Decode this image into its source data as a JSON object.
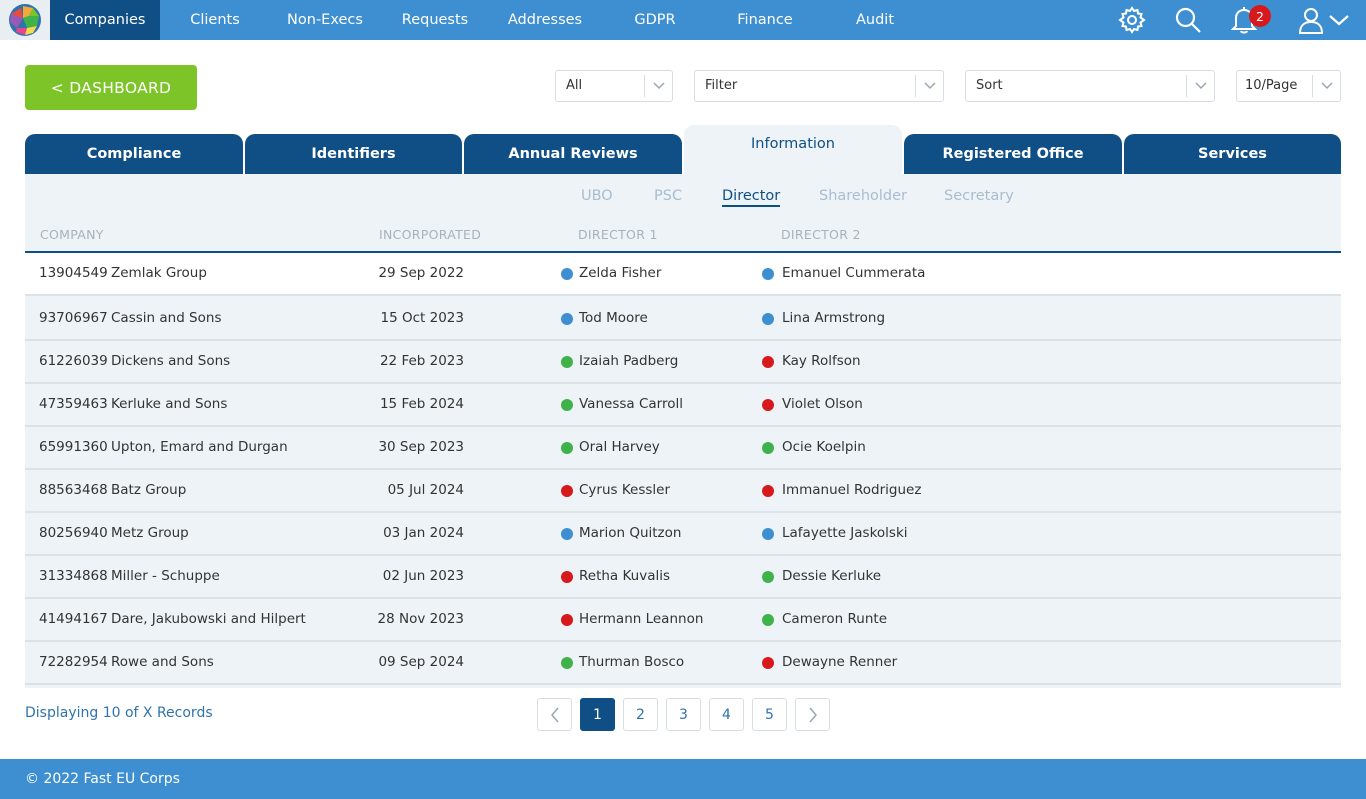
{
  "nav": {
    "items": [
      {
        "label": "Companies",
        "active": true
      },
      {
        "label": "Clients"
      },
      {
        "label": "Non-Execs"
      },
      {
        "label": "Requests"
      },
      {
        "label": "Addresses"
      },
      {
        "label": "GDPR"
      },
      {
        "label": "Finance"
      },
      {
        "label": "Audit"
      }
    ],
    "notification_count": "2",
    "icons": [
      "gear-icon",
      "search-icon",
      "bell-icon",
      "user-icon",
      "chevron-down-icon"
    ]
  },
  "controls": {
    "dashboard_label": "< DASHBOARD",
    "filter_all": "All",
    "filter": "Filter",
    "sort": "Sort",
    "per_page": "10/Page"
  },
  "tabs": [
    {
      "label": "Compliance"
    },
    {
      "label": "Identifiers"
    },
    {
      "label": "Annual Reviews"
    },
    {
      "label": "Information",
      "active": true
    },
    {
      "label": "Registered Office"
    },
    {
      "label": "Services"
    }
  ],
  "subtabs": [
    {
      "label": "UBO"
    },
    {
      "label": "PSC"
    },
    {
      "label": "Director",
      "active": true
    },
    {
      "label": "Shareholder"
    },
    {
      "label": "Secretary"
    }
  ],
  "table": {
    "headers": {
      "company": "COMPANY",
      "incorporated": "INCORPORATED",
      "director1": "DIRECTOR 1",
      "director2": "DIRECTOR 2"
    },
    "rows": [
      {
        "number": "13904549",
        "name": "Zemlak Group",
        "date": "29 Sep 2022",
        "d1": "Zelda Fisher",
        "d1_status": "blue",
        "d2": "Emanuel Cummerata",
        "d2_status": "blue"
      },
      {
        "number": "93706967",
        "name": "Cassin and Sons",
        "date": "15 Oct 2023",
        "d1": "Tod Moore",
        "d1_status": "blue",
        "d2": "Lina Armstrong",
        "d2_status": "blue"
      },
      {
        "number": "61226039",
        "name": "Dickens and Sons",
        "date": "22 Feb 2023",
        "d1": "Izaiah Padberg",
        "d1_status": "green",
        "d2": "Kay Rolfson",
        "d2_status": "red"
      },
      {
        "number": "47359463",
        "name": "Kerluke and Sons",
        "date": "15 Feb 2024",
        "d1": "Vanessa Carroll",
        "d1_status": "green",
        "d2": "Violet Olson",
        "d2_status": "red"
      },
      {
        "number": "65991360",
        "name": "Upton, Emard and Durgan",
        "date": "30 Sep 2023",
        "d1": "Oral Harvey",
        "d1_status": "green",
        "d2": "Ocie Koelpin",
        "d2_status": "green"
      },
      {
        "number": "88563468",
        "name": "Batz Group",
        "date": "05 Jul 2024",
        "d1": "Cyrus Kessler",
        "d1_status": "red",
        "d2": "Immanuel Rodriguez",
        "d2_status": "red"
      },
      {
        "number": "80256940",
        "name": "Metz Group",
        "date": "03 Jan 2024",
        "d1": "Marion Quitzon",
        "d1_status": "blue",
        "d2": "Lafayette Jaskolski",
        "d2_status": "blue"
      },
      {
        "number": "31334868",
        "name": "Miller - Schuppe",
        "date": "02 Jun 2023",
        "d1": "Retha Kuvalis",
        "d1_status": "red",
        "d2": "Dessie Kerluke",
        "d2_status": "green"
      },
      {
        "number": "41494167",
        "name": "Dare, Jakubowski and Hilpert",
        "date": "28 Nov 2023",
        "d1": "Hermann Leannon",
        "d1_status": "red",
        "d2": "Cameron Runte",
        "d2_status": "green"
      },
      {
        "number": "72282954",
        "name": "Rowe and Sons",
        "date": "09 Sep 2024",
        "d1": "Thurman Bosco",
        "d1_status": "green",
        "d2": "Dewayne Renner",
        "d2_status": "red"
      }
    ]
  },
  "status_colors": {
    "blue": "#3d8fd1",
    "green": "#3fb24a",
    "red": "#d7191c"
  },
  "pagination": {
    "display_text": "Displaying 10 of X Records",
    "pages": [
      "1",
      "2",
      "3",
      "4",
      "5"
    ],
    "current": "1"
  },
  "footer": {
    "text": "© 2022 Fast EU Corps"
  }
}
